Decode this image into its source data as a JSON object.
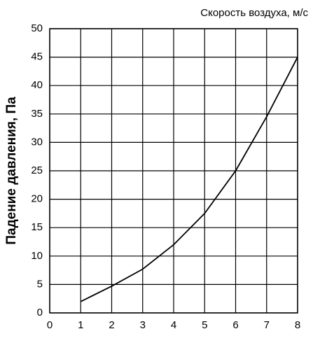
{
  "chart_data": {
    "type": "line",
    "x_label": "Скорость воздуха, м/с",
    "y_label": "Падение давления, Па",
    "series": [
      {
        "color": "#000000",
        "x": [
          1,
          2,
          3,
          4,
          5,
          6,
          7,
          8
        ],
        "values": [
          2,
          4.7,
          7.7,
          12,
          17.5,
          25,
          34.5,
          45
        ]
      }
    ],
    "xlim": [
      0,
      8
    ],
    "xticks": [
      0,
      1,
      2,
      3,
      4,
      5,
      6,
      7,
      8
    ],
    "ylim": [
      0,
      50
    ],
    "yticks": [
      0,
      5,
      10,
      15,
      20,
      25,
      30,
      35,
      40,
      45,
      50
    ],
    "grid": true
  }
}
